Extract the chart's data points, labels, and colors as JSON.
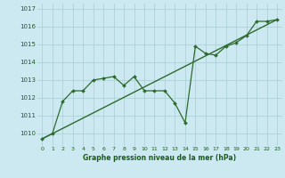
{
  "xlabel": "Graphe pression niveau de la mer (hPa)",
  "bg_color": "#cce8f0",
  "grid_color": "#b0d8e0",
  "line_color": "#2d6a2d",
  "label_color": "#1a5c1a",
  "x_ticks": [
    0,
    1,
    2,
    3,
    4,
    5,
    6,
    7,
    8,
    9,
    10,
    11,
    12,
    13,
    14,
    15,
    16,
    17,
    18,
    19,
    20,
    21,
    22,
    23
  ],
  "y_ticks": [
    1010,
    1011,
    1012,
    1013,
    1014,
    1015,
    1016,
    1017
  ],
  "ylim": [
    1009.3,
    1017.3
  ],
  "xlim": [
    -0.5,
    23.5
  ],
  "series1_x": [
    0,
    1,
    2,
    3,
    4,
    5,
    6,
    7,
    8,
    9,
    10,
    11,
    12,
    13,
    14,
    15,
    16,
    17,
    18,
    19,
    20,
    21,
    22,
    23
  ],
  "series1_y": [
    1009.7,
    1010.0,
    1011.8,
    1012.4,
    1012.4,
    1013.0,
    1013.1,
    1013.2,
    1012.7,
    1013.2,
    1012.4,
    1012.4,
    1012.4,
    1011.7,
    1010.6,
    1014.9,
    1014.5,
    1014.4,
    1014.9,
    1015.1,
    1015.5,
    1016.3,
    1016.3,
    1016.4
  ],
  "series2_x": [
    0,
    23
  ],
  "series2_y": [
    1009.7,
    1016.4
  ]
}
